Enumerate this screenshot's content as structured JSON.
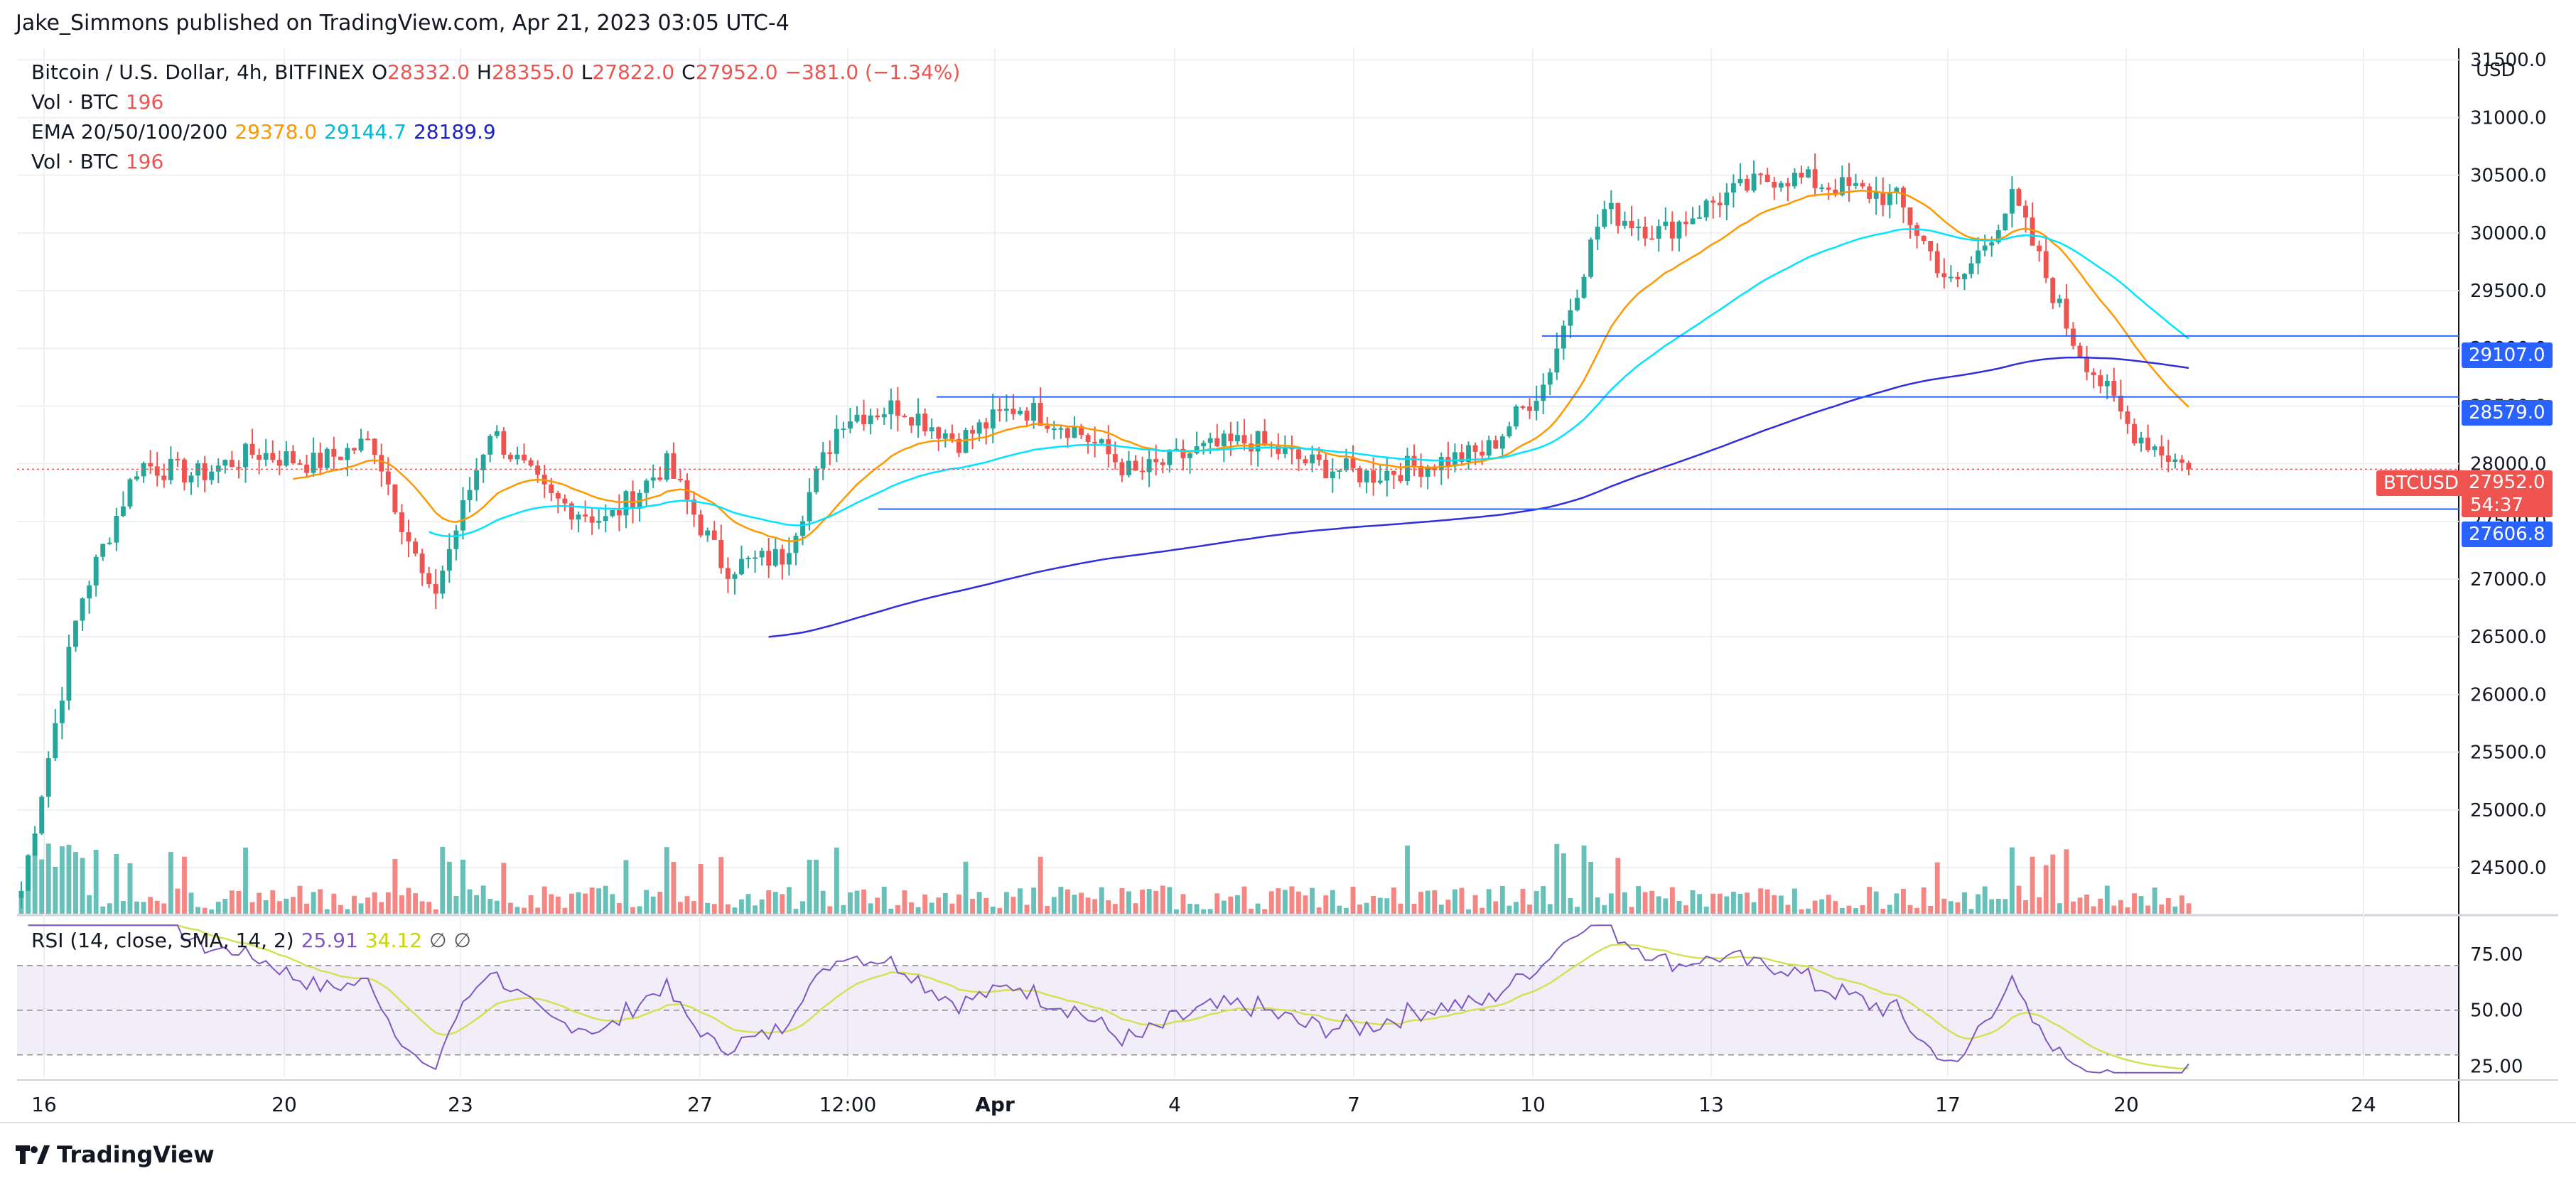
{
  "publisher_line": "Jake_Simmons published on TradingView.com, Apr 21, 2023 03:05 UTC-4",
  "symbol": {
    "name": "Bitcoin / U.S. Dollar, 4h, BITFINEX",
    "o_label": "O",
    "o_value": "28332.0",
    "h_label": "H",
    "h_value": "28355.0",
    "l_label": "L",
    "l_value": "27822.0",
    "c_label": "C",
    "c_value": "27952.0",
    "change": "−381.0 (−1.34%)"
  },
  "vol1": {
    "label": "Vol · BTC",
    "value": "196"
  },
  "ema": {
    "label": "EMA 20/50/100/200",
    "v20": "29378.0",
    "v50": "29144.7",
    "v200": "28189.9"
  },
  "vol2": {
    "label": "Vol · BTC",
    "value": "196"
  },
  "rsi_legend": {
    "label": "RSI (14, close, SMA, 14, 2)",
    "rsi": "25.91",
    "sma": "34.12",
    "sym1": "∅",
    "sym2": "∅"
  },
  "currency": "USD",
  "price_tags": {
    "t1": "29107.0",
    "t2": "28579.0",
    "t3": "27606.8",
    "ticker": "BTCUSD",
    "last": "27952.0",
    "countdown": "54:37"
  },
  "colors": {
    "up": "#26a69a",
    "down": "#ef5350",
    "ema20": "#ff9800",
    "ema50": "#00e5ff",
    "ema200": "#2f2fdc",
    "hline": "#2962ff",
    "rsi": "#7e57c2",
    "rsi_sma": "#d4e157"
  },
  "footer_brand": "TradingView",
  "chart_data": [
    {
      "type": "candlestick",
      "title": "Bitcoin / U.S. Dollar, 4h, BITFINEX",
      "ylabel": "USD",
      "ylim": [
        24100,
        31600
      ],
      "y_ticks": [
        "24500.0",
        "25000.0",
        "25500.0",
        "26000.0",
        "26500.0",
        "27000.0",
        "27500.0",
        "28000.0",
        "28500.0",
        "29000.0",
        "29500.0",
        "30000.0",
        "30500.0",
        "31000.0",
        "31500.0"
      ],
      "x_ticks": [
        "16",
        "20",
        "23",
        "27",
        "12:00",
        "Apr",
        "4",
        "7",
        "10",
        "13",
        "17",
        "20",
        "24"
      ],
      "horizontal_levels": [
        29107.0,
        28579.0,
        27606.8
      ],
      "close_keypoints": [
        {
          "x": "Mar 16",
          "y": 24300
        },
        {
          "x": "Mar 17",
          "y": 26800
        },
        {
          "x": "Mar 18",
          "y": 28000
        },
        {
          "x": "Mar 19",
          "y": 27900
        },
        {
          "x": "Mar 20",
          "y": 28100
        },
        {
          "x": "Mar 21",
          "y": 28000
        },
        {
          "x": "Mar 22",
          "y": 28200
        },
        {
          "x": "Mar 22 (drop)",
          "y": 26800
        },
        {
          "x": "Mar 23",
          "y": 28300
        },
        {
          "x": "Mar 24",
          "y": 27700
        },
        {
          "x": "Mar 25",
          "y": 27500
        },
        {
          "x": "Mar 26",
          "y": 28000
        },
        {
          "x": "Mar 27",
          "y": 27100
        },
        {
          "x": "Mar 28",
          "y": 27200
        },
        {
          "x": "Mar 29",
          "y": 28400
        },
        {
          "x": "Mar 30",
          "y": 28500
        },
        {
          "x": "Mar 31",
          "y": 28200
        },
        {
          "x": "Apr 1",
          "y": 28500
        },
        {
          "x": "Apr 2",
          "y": 28300
        },
        {
          "x": "Apr 3",
          "y": 27900
        },
        {
          "x": "Apr 4",
          "y": 28100
        },
        {
          "x": "Apr 5",
          "y": 28200
        },
        {
          "x": "Apr 6",
          "y": 28000
        },
        {
          "x": "Apr 7",
          "y": 27900
        },
        {
          "x": "Apr 8",
          "y": 28000
        },
        {
          "x": "Apr 9",
          "y": 28100
        },
        {
          "x": "Apr 10",
          "y": 28700
        },
        {
          "x": "Apr 11",
          "y": 30200
        },
        {
          "x": "Apr 12",
          "y": 30000
        },
        {
          "x": "Apr 13",
          "y": 30300
        },
        {
          "x": "Apr 14",
          "y": 30500
        },
        {
          "x": "Apr 15",
          "y": 30400
        },
        {
          "x": "Apr 16",
          "y": 30300
        },
        {
          "x": "Apr 17",
          "y": 29500
        },
        {
          "x": "Apr 18",
          "y": 30300
        },
        {
          "x": "Apr 19",
          "y": 29100
        },
        {
          "x": "Apr 20",
          "y": 28300
        },
        {
          "x": "Apr 21",
          "y": 27952
        }
      ],
      "series": [
        {
          "name": "EMA 20",
          "last": 29378.0
        },
        {
          "name": "EMA 50",
          "last": 29144.7
        },
        {
          "name": "EMA 200",
          "last": 28189.9
        }
      ]
    },
    {
      "type": "line",
      "title": "RSI (14, close, SMA, 14, 2)",
      "ylim": [
        20,
        90
      ],
      "y_ticks": [
        "25.00",
        "50.00",
        "75.00"
      ],
      "series": [
        {
          "name": "RSI",
          "last": 25.91
        },
        {
          "name": "SMA",
          "last": 34.12
        }
      ]
    }
  ]
}
